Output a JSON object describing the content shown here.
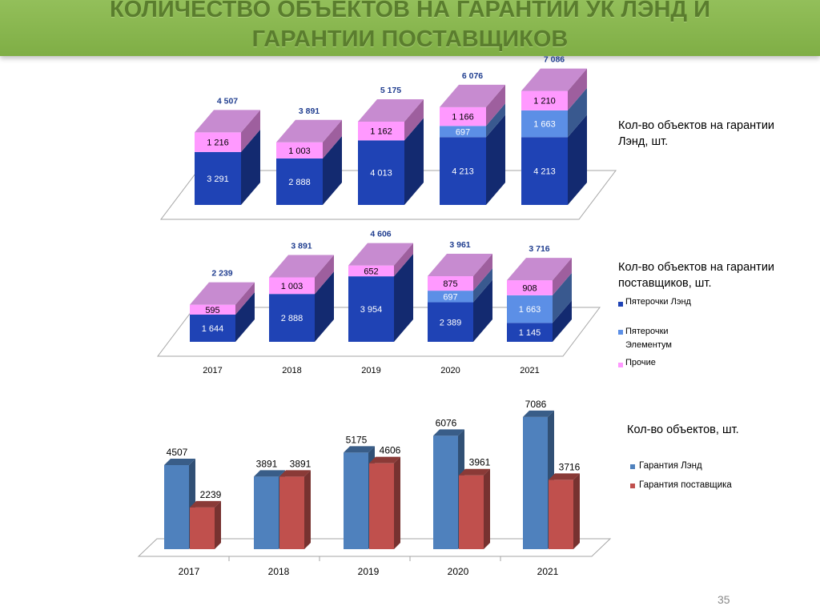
{
  "header": {
    "title_line1": "КОЛИЧЕСТВО ОБЪЕКТОВ НА ГАРАНТИИ УК ЛЭНД И",
    "title_line2": "ГАРАНТИИ ПОСТАВЩИКОВ"
  },
  "colors": {
    "pyaterochki_lend": "#1f43b5",
    "pyaterochki_elementum": "#5c8fe6",
    "prochie": "#ff99ff",
    "garantiya_lend": "#4f81bd",
    "garantiya_postavshchika": "#c0504d",
    "title_bar": "#86b44c"
  },
  "captions": {
    "chart1": "Кол-во объектов на гарантии Лэнд, шт.",
    "chart2": "Кол-во объектов на гарантии поставщиков, шт.",
    "chart3": "Кол-во объектов, шт."
  },
  "legend_stack": [
    {
      "label": "Пятерочки Лэнд",
      "color_key": "pyaterochki_lend"
    },
    {
      "label": "Пятерочки Элементум",
      "color_key": "pyaterochki_elementum"
    },
    {
      "label": "Прочие",
      "color_key": "prochie"
    }
  ],
  "legend_compare": [
    {
      "label": "Гарантия Лэнд",
      "color_key": "garantiya_lend"
    },
    {
      "label": "Гарантия поставщика",
      "color_key": "garantiya_postavshchika"
    }
  ],
  "page_number": "35",
  "chart_data": [
    {
      "type": "bar",
      "stacked": true,
      "title": "Кол-во объектов на гарантии Лэнд, шт.",
      "categories": [
        "2017",
        "2018",
        "2019",
        "2020",
        "2021"
      ],
      "series": [
        {
          "name": "Пятерочки Лэнд",
          "values": [
            3291,
            2888,
            4013,
            4213,
            4213
          ],
          "labels": [
            "3 291",
            "2 888",
            "4 013",
            "4 213",
            "4 213"
          ]
        },
        {
          "name": "Пятерочки Элементум",
          "values": [
            0,
            0,
            0,
            697,
            1663
          ],
          "labels": [
            "",
            "",
            "",
            "697",
            "1 663"
          ]
        },
        {
          "name": "Прочие",
          "values": [
            1216,
            1003,
            1162,
            1166,
            1210
          ],
          "labels": [
            "1 216",
            "1 003",
            "1 162",
            "1 166",
            "1 210"
          ]
        }
      ],
      "totals": [
        4507,
        3891,
        5175,
        6076,
        7086
      ],
      "total_labels": [
        "4 507",
        "3 891",
        "5 175",
        "6 076",
        "7 086"
      ],
      "ylim": [
        0,
        7500
      ],
      "grid": false,
      "legend": "none"
    },
    {
      "type": "bar",
      "stacked": true,
      "title": "Кол-во объектов на гарантии поставщиков, шт.",
      "categories": [
        "2017",
        "2018",
        "2019",
        "2020",
        "2021"
      ],
      "series": [
        {
          "name": "Пятерочки Лэнд",
          "values": [
            1644,
            2888,
            3954,
            2389,
            1145
          ],
          "labels": [
            "1 644",
            "2 888",
            "3 954",
            "2 389",
            "1 145"
          ]
        },
        {
          "name": "Пятерочки Элементум",
          "values": [
            0,
            0,
            0,
            697,
            1663
          ],
          "labels": [
            "",
            "",
            "",
            "697",
            "1 663"
          ]
        },
        {
          "name": "Прочие",
          "values": [
            595,
            1003,
            652,
            875,
            908
          ],
          "labels": [
            "595",
            "1 003",
            "652",
            "875",
            "908"
          ]
        }
      ],
      "totals": [
        2239,
        3891,
        4606,
        3961,
        3716
      ],
      "total_labels": [
        "2 239",
        "3 891",
        "4 606",
        "3 961",
        "3 716"
      ],
      "ylim": [
        0,
        4800
      ],
      "grid": false,
      "legend": "right"
    },
    {
      "type": "bar",
      "stacked": false,
      "title": "Кол-во объектов, шт.",
      "categories": [
        "2017",
        "2018",
        "2019",
        "2020",
        "2021"
      ],
      "series": [
        {
          "name": "Гарантия Лэнд",
          "values": [
            4507,
            3891,
            5175,
            6076,
            7086
          ]
        },
        {
          "name": "Гарантия поставщика",
          "values": [
            2239,
            3891,
            4606,
            3961,
            3716
          ]
        }
      ],
      "ylim": [
        0,
        7500
      ],
      "grid": false,
      "legend": "right"
    }
  ]
}
